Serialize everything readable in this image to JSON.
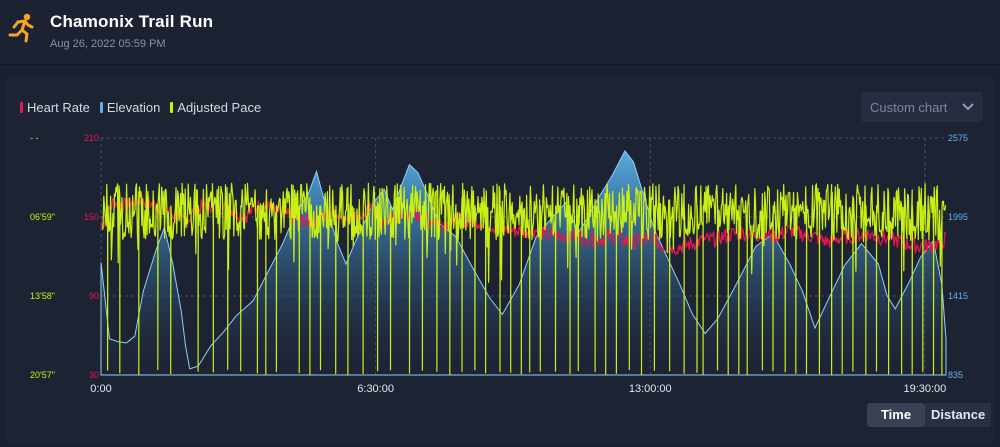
{
  "header": {
    "title": "Chamonix Trail Run",
    "subtitle": "Aug 26, 2022 05:59 PM"
  },
  "legend": [
    {
      "label": "Heart Rate",
      "color": "#e8164f"
    },
    {
      "label": "Elevation",
      "color": "#5ab4ea"
    },
    {
      "label": "Adjusted Pace",
      "color": "#c9f014"
    }
  ],
  "chart_select": {
    "label": "Custom chart",
    "icon": "chevron-down-icon"
  },
  "toggle": {
    "time_label": "Time",
    "distance_label": "Distance",
    "active": "Time"
  },
  "chart_data": {
    "type": "line",
    "x_axis": {
      "label": "",
      "ticks": [
        "0:00",
        "6:30:00",
        "13:00:00",
        "19:30:00"
      ],
      "range_hours": [
        0,
        20
      ]
    },
    "axes": {
      "pace": {
        "ticks": [
          "- -",
          "06'59\"",
          "13'58\"",
          "20'57\""
        ],
        "color": "#c9f014"
      },
      "heart_rate": {
        "ticks": [
          "210",
          "150",
          "90",
          "30"
        ],
        "range": [
          30,
          210
        ],
        "color": "#e8164f"
      },
      "elevation": {
        "ticks": [
          "2575",
          "1995",
          "1415",
          "835"
        ],
        "range": [
          835,
          2575
        ],
        "color": "#5ab4ea"
      }
    },
    "grid": true,
    "series": [
      {
        "name": "Elevation",
        "area": true,
        "points": [
          [
            0,
            1660
          ],
          [
            0.2,
            1100
          ],
          [
            0.4,
            1080
          ],
          [
            0.6,
            1070
          ],
          [
            0.8,
            1120
          ],
          [
            1.0,
            1450
          ],
          [
            1.3,
            1750
          ],
          [
            1.5,
            1920
          ],
          [
            1.7,
            1650
          ],
          [
            1.9,
            1300
          ],
          [
            2.0,
            1050
          ],
          [
            2.1,
            880
          ],
          [
            2.3,
            900
          ],
          [
            2.6,
            1050
          ],
          [
            2.9,
            1150
          ],
          [
            3.2,
            1270
          ],
          [
            3.6,
            1380
          ],
          [
            4.0,
            1620
          ],
          [
            4.3,
            1800
          ],
          [
            4.6,
            2020
          ],
          [
            4.9,
            2160
          ],
          [
            5.1,
            2330
          ],
          [
            5.3,
            2100
          ],
          [
            5.6,
            1800
          ],
          [
            5.8,
            1650
          ],
          [
            6.0,
            1800
          ],
          [
            6.3,
            2000
          ],
          [
            6.5,
            2120
          ],
          [
            6.7,
            2200
          ],
          [
            6.9,
            2050
          ],
          [
            7.1,
            2220
          ],
          [
            7.3,
            2380
          ],
          [
            7.5,
            2320
          ],
          [
            7.7,
            2180
          ],
          [
            8.0,
            1950
          ],
          [
            8.4,
            1850
          ],
          [
            8.8,
            1620
          ],
          [
            9.2,
            1400
          ],
          [
            9.5,
            1280
          ],
          [
            9.9,
            1500
          ],
          [
            10.3,
            1850
          ],
          [
            10.7,
            2000
          ],
          [
            11.0,
            2100
          ],
          [
            11.3,
            1880
          ],
          [
            11.5,
            1980
          ],
          [
            11.8,
            2150
          ],
          [
            12.1,
            2300
          ],
          [
            12.4,
            2480
          ],
          [
            12.6,
            2400
          ],
          [
            12.9,
            2100
          ],
          [
            13.1,
            1900
          ],
          [
            13.4,
            1700
          ],
          [
            13.7,
            1500
          ],
          [
            14.0,
            1280
          ],
          [
            14.3,
            1140
          ],
          [
            14.6,
            1250
          ],
          [
            15.0,
            1480
          ],
          [
            15.5,
            1780
          ],
          [
            15.9,
            1870
          ],
          [
            16.3,
            1650
          ],
          [
            16.6,
            1450
          ],
          [
            16.9,
            1180
          ],
          [
            17.2,
            1380
          ],
          [
            17.6,
            1640
          ],
          [
            18.0,
            1800
          ],
          [
            18.4,
            1650
          ],
          [
            18.6,
            1420
          ],
          [
            18.8,
            1320
          ],
          [
            19.1,
            1500
          ],
          [
            19.4,
            1700
          ],
          [
            19.7,
            1820
          ],
          [
            19.9,
            1500
          ],
          [
            20.0,
            1100
          ]
        ]
      },
      {
        "name": "Heart Rate",
        "points": [
          [
            0,
            142
          ],
          [
            0.3,
            162
          ],
          [
            0.6,
            158
          ],
          [
            0.9,
            164
          ],
          [
            1.2,
            160
          ],
          [
            1.5,
            156
          ],
          [
            1.8,
            150
          ],
          [
            2.0,
            146
          ],
          [
            2.2,
            154
          ],
          [
            2.5,
            160
          ],
          [
            2.8,
            158
          ],
          [
            3.1,
            156
          ],
          [
            3.4,
            150
          ],
          [
            3.7,
            158
          ],
          [
            4.0,
            157
          ],
          [
            4.3,
            152
          ],
          [
            4.6,
            149
          ],
          [
            4.9,
            146
          ],
          [
            5.2,
            150
          ],
          [
            5.5,
            154
          ],
          [
            5.8,
            148
          ],
          [
            6.1,
            151
          ],
          [
            6.4,
            155
          ],
          [
            6.7,
            146
          ],
          [
            7.0,
            148
          ],
          [
            7.3,
            154
          ],
          [
            7.6,
            150
          ],
          [
            7.9,
            147
          ],
          [
            8.2,
            145
          ],
          [
            8.5,
            148
          ],
          [
            8.8,
            147
          ],
          [
            9.1,
            146
          ],
          [
            9.4,
            141
          ],
          [
            9.7,
            140
          ],
          [
            10.0,
            139
          ],
          [
            10.3,
            140
          ],
          [
            10.6,
            137
          ],
          [
            10.9,
            135
          ],
          [
            11.2,
            137
          ],
          [
            11.5,
            134
          ],
          [
            11.8,
            133
          ],
          [
            12.1,
            136
          ],
          [
            12.4,
            132
          ],
          [
            12.7,
            131
          ],
          [
            13.0,
            134
          ],
          [
            13.3,
            128
          ],
          [
            13.6,
            127
          ],
          [
            13.9,
            129
          ],
          [
            14.2,
            132
          ],
          [
            14.5,
            133
          ],
          [
            14.8,
            136
          ],
          [
            15.1,
            138
          ],
          [
            15.4,
            137
          ],
          [
            15.7,
            136
          ],
          [
            16.0,
            136
          ],
          [
            16.3,
            140
          ],
          [
            16.6,
            137
          ],
          [
            16.9,
            135
          ],
          [
            17.2,
            131
          ],
          [
            17.5,
            134
          ],
          [
            17.8,
            136
          ],
          [
            18.1,
            137
          ],
          [
            18.4,
            135
          ],
          [
            18.7,
            133
          ],
          [
            19.0,
            131
          ],
          [
            19.3,
            128
          ],
          [
            19.6,
            128
          ],
          [
            19.9,
            131
          ],
          [
            20.0,
            134
          ]
        ]
      },
      {
        "name": "Adjusted Pace",
        "note": "dense noisy band between roughly 4'00\" and 9'00\" with frequent spikes down toward 20'57\"",
        "band": {
          "upper_pace_min": 4.0,
          "lower_pace_min": 9.0
        },
        "spikes_hours": [
          0.15,
          0.45,
          0.9,
          1.35,
          1.65,
          2.3,
          2.65,
          3.0,
          3.3,
          3.7,
          3.9,
          4.15,
          4.7,
          4.95,
          5.2,
          5.55,
          5.85,
          6.2,
          6.55,
          6.85,
          7.3,
          7.6,
          7.95,
          8.25,
          8.55,
          8.85,
          9.1,
          9.45,
          9.7,
          9.95,
          10.15,
          10.4,
          10.75,
          11.1,
          11.3,
          11.7,
          11.95,
          12.2,
          12.5,
          12.8,
          13.1,
          13.45,
          13.8,
          14.1,
          14.25,
          14.6,
          14.85,
          15.1,
          15.3,
          15.65,
          15.9,
          16.2,
          16.45,
          16.7,
          17.0,
          17.3,
          17.55,
          17.8,
          18.1,
          18.35,
          18.65,
          18.95,
          19.2,
          19.45,
          19.7,
          19.9
        ]
      }
    ]
  }
}
